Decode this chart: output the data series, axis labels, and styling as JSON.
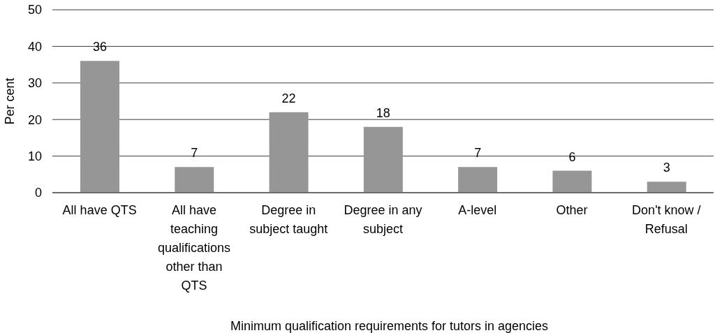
{
  "chart_data": {
    "type": "bar",
    "xlabel": "Minimum qualification requirements for tutors in agencies",
    "ylabel": "Per cent",
    "categories": [
      "All have QTS",
      "All have teaching qualifications other than QTS",
      "Degree in subject taught",
      "Degree in any subject",
      "A-level",
      "Other",
      "Don't know / Refusal"
    ],
    "values": [
      36,
      7,
      22,
      18,
      7,
      6,
      3
    ],
    "color": "#969696",
    "ylim": [
      0,
      50
    ],
    "yticks": [
      0,
      10,
      20,
      30,
      40,
      50
    ],
    "grid": "y",
    "data_labels": true
  }
}
